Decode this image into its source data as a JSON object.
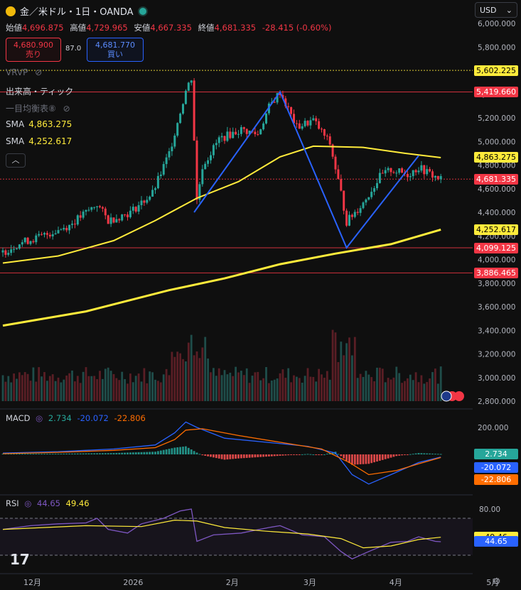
{
  "header": {
    "title": "金／米ドル・1日・OANDA",
    "currency": "USD"
  },
  "ohlc": {
    "open_label": "始値",
    "open": "4,696.875",
    "high_label": "高値",
    "high": "4,729.965",
    "low_label": "安値",
    "low": "4,667.335",
    "close_label": "終値",
    "close": "4,681.335",
    "change": "-28.415 (-0.60%)"
  },
  "trade": {
    "sell_price": "4,680.900",
    "sell_label": "売り",
    "spread": "87.0",
    "buy_price": "4,681.770",
    "buy_label": "買い"
  },
  "indicators": {
    "vrvp": "VRVP",
    "volume_tick": "出来高・ティック",
    "ichimoku": "一目均衡表⑧",
    "sma1_label": "SMA",
    "sma1_value": "4,863.275",
    "sma2_label": "SMA",
    "sma2_value": "4,252.617"
  },
  "macd_legend": {
    "label": "MACD",
    "v1": "2.734",
    "v2": "-20.072",
    "v3": "-22.806"
  },
  "rsi_legend": {
    "label": "RSI",
    "v1": "44.65",
    "v2": "49.46"
  },
  "price_labels": [
    {
      "text": "5,602.225",
      "bg": "#ffeb3b",
      "fg": "#000000",
      "value": 5602.225
    },
    {
      "text": "5,419.660",
      "bg": "#f23645",
      "fg": "#ffffff",
      "value": 5419.66
    },
    {
      "text": "4,863.275",
      "bg": "#ffeb3b",
      "fg": "#000000",
      "value": 4863.275
    },
    {
      "text": "4,681.335",
      "bg": "#f23645",
      "fg": "#ffffff",
      "value": 4681.335
    },
    {
      "text": "4,252.617",
      "bg": "#ffeb3b",
      "fg": "#000000",
      "value": 4252.617
    },
    {
      "text": "4,099.125",
      "bg": "#f23645",
      "fg": "#ffffff",
      "value": 4099.125
    },
    {
      "text": "3,886.465",
      "bg": "#f23645",
      "fg": "#ffffff",
      "value": 3886.465
    }
  ],
  "macd_labels": [
    {
      "text": "2.734",
      "bg": "#26a69a",
      "fg": "#ffffff",
      "value": 2.734
    },
    {
      "text": "-20.072",
      "bg": "#2962ff",
      "fg": "#ffffff",
      "value": -20.072
    },
    {
      "text": "-22.806",
      "bg": "#ff6d00",
      "fg": "#ffffff",
      "value": -22.806
    }
  ],
  "rsi_labels": [
    {
      "text": "49.46",
      "bg": "#ffeb3b",
      "fg": "#000000",
      "value": 49.46
    },
    {
      "text": "44.65",
      "bg": "#2962ff",
      "fg": "#ffffff",
      "value": 44.65
    }
  ],
  "colors": {
    "up": "#26a69a",
    "down": "#f23645",
    "sma1": "#ffeb3b",
    "sma2": "#ffeb3b",
    "zigzag": "#2962ff",
    "macd": "#2962ff",
    "signal": "#ff6d00",
    "rsi": "#7e57c2",
    "rsi_ma": "#ffeb3b"
  },
  "chart_data": [
    {
      "type": "candlestick",
      "title": "金／米ドル・1日・OANDA",
      "x_labels": [
        "12月",
        "2026",
        "2月",
        "3月",
        "4月",
        "5月"
      ],
      "x_tick_indices": [
        10,
        46,
        83,
        111,
        142,
        177
      ],
      "ylim": [
        2800,
        6100
      ],
      "y_ticks": [
        2800,
        3000,
        3200,
        3400,
        3600,
        3800,
        4000,
        4200,
        4400,
        4600,
        4800,
        5000,
        5200,
        5400,
        5600,
        5800,
        6000
      ],
      "y_tick_labels": [
        "2,800.000",
        "3,000.000",
        "3,200.000",
        "3,400.000",
        "3,600.000",
        "3,800.000",
        "4,000.000",
        "4,200.000",
        "4,400.000",
        "4,600.000",
        "4,800.000",
        "5,000.000",
        "5,200.000",
        "5,400.000",
        "5,600.000",
        "5,800.000",
        "6,000.000"
      ],
      "anchors": [
        [
          0,
          4060
        ],
        [
          6,
          4140
        ],
        [
          14,
          4195
        ],
        [
          24,
          4290
        ],
        [
          34,
          4470
        ],
        [
          38,
          4330
        ],
        [
          46,
          4400
        ],
        [
          54,
          4560
        ],
        [
          60,
          4900
        ],
        [
          66,
          5430
        ],
        [
          68,
          5540
        ],
        [
          70,
          4500
        ],
        [
          72,
          4790
        ],
        [
          78,
          5020
        ],
        [
          86,
          5100
        ],
        [
          92,
          5060
        ],
        [
          96,
          5290
        ],
        [
          100,
          5420
        ],
        [
          106,
          5120
        ],
        [
          112,
          5180
        ],
        [
          118,
          4980
        ],
        [
          122,
          4560
        ],
        [
          124,
          4320
        ],
        [
          130,
          4480
        ],
        [
          136,
          4700
        ],
        [
          140,
          4760
        ],
        [
          146,
          4720
        ],
        [
          150,
          4780
        ],
        [
          156,
          4700
        ],
        [
          158,
          4681
        ]
      ],
      "sma_long": [
        [
          0,
          3440
        ],
        [
          30,
          3560
        ],
        [
          60,
          3740
        ],
        [
          80,
          3840
        ],
        [
          100,
          3960
        ],
        [
          120,
          4050
        ],
        [
          140,
          4130
        ],
        [
          158,
          4253
        ]
      ],
      "sma_mid": [
        [
          0,
          3970
        ],
        [
          20,
          4030
        ],
        [
          40,
          4160
        ],
        [
          55,
          4330
        ],
        [
          70,
          4520
        ],
        [
          85,
          4660
        ],
        [
          100,
          4870
        ],
        [
          112,
          4960
        ],
        [
          130,
          4950
        ],
        [
          145,
          4900
        ],
        [
          158,
          4863
        ]
      ],
      "zigzag": [
        [
          69,
          4400
        ],
        [
          100,
          5420
        ],
        [
          124,
          4100
        ],
        [
          150,
          4880
        ]
      ],
      "horizontal_levels": [
        5602.225,
        5419.66,
        4099.125,
        3886.465,
        4681.335
      ],
      "volume_ylim": [
        0,
        1.0
      ]
    },
    {
      "type": "line",
      "title": "MACD",
      "series": [
        {
          "name": "",
          "last": 2.734
        },
        {
          "name": "",
          "last": -20.072
        },
        {
          "name": "",
          "last": -22.806
        }
      ],
      "ylim": [
        -280,
        260
      ],
      "y_ticks": [
        200
      ],
      "y_tick_labels": [
        "200.000"
      ],
      "macd": [
        [
          0,
          10
        ],
        [
          20,
          20
        ],
        [
          40,
          40
        ],
        [
          55,
          70
        ],
        [
          62,
          160
        ],
        [
          66,
          240
        ],
        [
          70,
          200
        ],
        [
          80,
          120
        ],
        [
          95,
          90
        ],
        [
          110,
          60
        ],
        [
          120,
          10
        ],
        [
          126,
          -150
        ],
        [
          132,
          -220
        ],
        [
          140,
          -150
        ],
        [
          150,
          -60
        ],
        [
          158,
          -20
        ]
      ],
      "signal": [
        [
          0,
          5
        ],
        [
          20,
          15
        ],
        [
          40,
          30
        ],
        [
          55,
          50
        ],
        [
          62,
          110
        ],
        [
          66,
          180
        ],
        [
          72,
          190
        ],
        [
          85,
          140
        ],
        [
          100,
          90
        ],
        [
          115,
          40
        ],
        [
          125,
          -60
        ],
        [
          132,
          -150
        ],
        [
          142,
          -120
        ],
        [
          150,
          -70
        ],
        [
          158,
          -23
        ]
      ]
    },
    {
      "type": "line",
      "title": "RSI",
      "series": [
        {
          "name": "",
          "last": 44.65
        },
        {
          "name": "",
          "last": 49.46
        }
      ],
      "ylim": [
        22,
        90
      ],
      "y_ticks": [
        80
      ],
      "y_tick_labels": [
        "80.00"
      ],
      "bands": [
        70,
        30
      ],
      "rsi": [
        [
          0,
          58
        ],
        [
          10,
          62
        ],
        [
          20,
          64
        ],
        [
          30,
          65
        ],
        [
          34,
          70
        ],
        [
          38,
          58
        ],
        [
          45,
          54
        ],
        [
          50,
          64
        ],
        [
          58,
          70
        ],
        [
          64,
          78
        ],
        [
          68,
          80
        ],
        [
          70,
          45
        ],
        [
          76,
          52
        ],
        [
          86,
          54
        ],
        [
          96,
          60
        ],
        [
          100,
          62
        ],
        [
          108,
          52
        ],
        [
          116,
          50
        ],
        [
          122,
          34
        ],
        [
          126,
          26
        ],
        [
          132,
          34
        ],
        [
          140,
          44
        ],
        [
          146,
          45
        ],
        [
          150,
          50
        ],
        [
          156,
          45
        ],
        [
          158,
          44.65
        ]
      ],
      "rsi_ma": [
        [
          0,
          58
        ],
        [
          30,
          62
        ],
        [
          50,
          61
        ],
        [
          62,
          68
        ],
        [
          70,
          67
        ],
        [
          80,
          60
        ],
        [
          95,
          56
        ],
        [
          110,
          53
        ],
        [
          122,
          48
        ],
        [
          130,
          38
        ],
        [
          140,
          40
        ],
        [
          150,
          47
        ],
        [
          158,
          49.46
        ]
      ]
    }
  ]
}
